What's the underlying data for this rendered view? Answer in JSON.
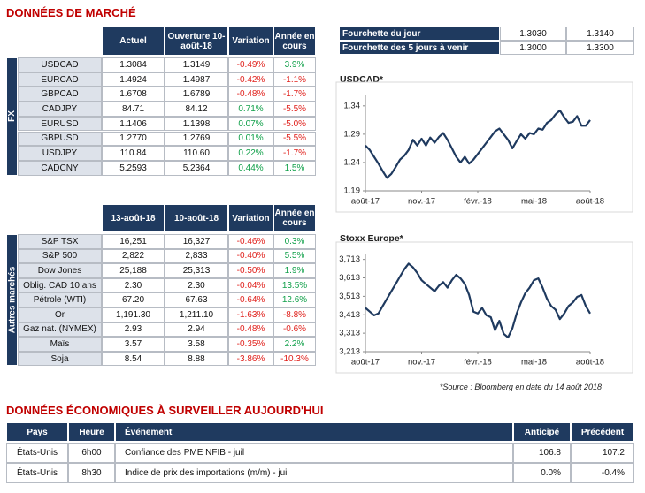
{
  "header": {
    "title": "DONNÉES DE MARCHÉ"
  },
  "fx_table": {
    "side_label": "FX",
    "columns": [
      "Actuel",
      "Ouverture 10-août-18",
      "Variation",
      "Année en cours"
    ],
    "rows": [
      [
        "USDCAD",
        "1.3084",
        "1.3149",
        "-0.49%",
        "3.9%"
      ],
      [
        "EURCAD",
        "1.4924",
        "1.4987",
        "-0.42%",
        "-1.1%"
      ],
      [
        "GBPCAD",
        "1.6708",
        "1.6789",
        "-0.48%",
        "-1.7%"
      ],
      [
        "CADJPY",
        "84.71",
        "84.12",
        "0.71%",
        "-5.5%"
      ],
      [
        "EURUSD",
        "1.1406",
        "1.1398",
        "0.07%",
        "-5.0%"
      ],
      [
        "GBPUSD",
        "1.2770",
        "1.2769",
        "0.01%",
        "-5.5%"
      ],
      [
        "USDJPY",
        "110.84",
        "110.60",
        "0.22%",
        "-1.7%"
      ],
      [
        "CADCNY",
        "5.2593",
        "5.2364",
        "0.44%",
        "1.5%"
      ]
    ]
  },
  "markets_table": {
    "side_label": "Autres marchés",
    "columns": [
      "13-août-18",
      "10-août-18",
      "Variation",
      "Année en cours"
    ],
    "rows": [
      [
        "S&P TSX",
        "16,251",
        "16,327",
        "-0.46%",
        "0.3%"
      ],
      [
        "S&P 500",
        "2,822",
        "2,833",
        "-0.40%",
        "5.5%"
      ],
      [
        "Dow Jones",
        "25,188",
        "25,313",
        "-0.50%",
        "1.9%"
      ],
      [
        "Oblig. CAD 10 ans",
        "2.30",
        "2.30",
        "-0.04%",
        "13.5%"
      ],
      [
        "Pétrole (WTI)",
        "67.20",
        "67.63",
        "-0.64%",
        "12.6%"
      ],
      [
        "Or",
        "1,191.30",
        "1,211.10",
        "-1.63%",
        "-8.8%"
      ],
      [
        "Gaz nat. (NYMEX)",
        "2.93",
        "2.94",
        "-0.48%",
        "-0.6%"
      ],
      [
        "Maïs",
        "3.57",
        "3.58",
        "-0.35%",
        "2.2%"
      ],
      [
        "Soja",
        "8.54",
        "8.88",
        "-3.86%",
        "-10.3%"
      ]
    ]
  },
  "range_table": {
    "rows": [
      [
        "Fourchette du jour",
        "1.3030",
        "1.3140"
      ],
      [
        "Fourchette des 5 jours à venir",
        "1.3000",
        "1.3300"
      ]
    ]
  },
  "chart_data": [
    {
      "type": "line",
      "title": "USDCAD*",
      "color": "#1f3a5f",
      "categories": [
        "août-17",
        null,
        null,
        null,
        null,
        null,
        null,
        null,
        null,
        null,
        null,
        null,
        null,
        "nov.-17",
        null,
        null,
        null,
        null,
        null,
        null,
        null,
        null,
        null,
        null,
        null,
        null,
        "févr.-18",
        null,
        null,
        null,
        null,
        null,
        null,
        null,
        null,
        null,
        null,
        null,
        null,
        "mai-18",
        null,
        null,
        null,
        null,
        null,
        null,
        null,
        null,
        null,
        null,
        null,
        null,
        "août-18"
      ],
      "values": [
        1.27,
        1.262,
        1.25,
        1.238,
        1.225,
        1.213,
        1.22,
        1.232,
        1.245,
        1.252,
        1.262,
        1.28,
        1.27,
        1.282,
        1.27,
        1.284,
        1.275,
        1.285,
        1.292,
        1.28,
        1.265,
        1.25,
        1.24,
        1.25,
        1.238,
        1.245,
        1.255,
        1.265,
        1.275,
        1.285,
        1.295,
        1.3,
        1.29,
        1.28,
        1.265,
        1.278,
        1.29,
        1.282,
        1.292,
        1.29,
        1.3,
        1.298,
        1.31,
        1.315,
        1.325,
        1.332,
        1.32,
        1.31,
        1.312,
        1.322,
        1.305,
        1.305,
        1.315
      ],
      "ylim": [
        1.19,
        1.36
      ],
      "yticks": [
        1.19,
        1.24,
        1.29,
        1.34
      ]
    },
    {
      "type": "line",
      "title": "Stoxx Europe*",
      "color": "#1f3a5f",
      "categories": [
        "août-17",
        null,
        null,
        null,
        null,
        null,
        null,
        null,
        null,
        null,
        null,
        null,
        null,
        "nov.-17",
        null,
        null,
        null,
        null,
        null,
        null,
        null,
        null,
        null,
        null,
        null,
        null,
        "févr.-18",
        null,
        null,
        null,
        null,
        null,
        null,
        null,
        null,
        null,
        null,
        null,
        null,
        "mai-18",
        null,
        null,
        null,
        null,
        null,
        null,
        null,
        null,
        null,
        null,
        null,
        null,
        "août-18"
      ],
      "values": [
        3450,
        3430,
        3410,
        3420,
        3460,
        3500,
        3540,
        3580,
        3620,
        3660,
        3690,
        3670,
        3640,
        3600,
        3580,
        3560,
        3540,
        3570,
        3590,
        3560,
        3600,
        3630,
        3610,
        3580,
        3520,
        3430,
        3420,
        3450,
        3410,
        3400,
        3330,
        3380,
        3310,
        3290,
        3340,
        3420,
        3480,
        3530,
        3560,
        3600,
        3610,
        3560,
        3500,
        3460,
        3440,
        3390,
        3420,
        3460,
        3480,
        3510,
        3520,
        3460,
        3420
      ],
      "ylim": [
        3213,
        3740
      ],
      "yticks": [
        {
          "value": 3213,
          "label": "3,213"
        },
        {
          "value": 3313,
          "label": "3,313"
        },
        {
          "value": 3413,
          "label": "3,413"
        },
        {
          "value": 3513,
          "label": "3,513"
        },
        {
          "value": 3613,
          "label": "3,613"
        },
        {
          "value": 3713,
          "label": "3,713"
        }
      ]
    }
  ],
  "source_note": "*Source : Bloomberg en date du  14 août 2018",
  "economic_section": {
    "title": "DONNÉES ÉCONOMIQUES À SURVEILLER AUJOURD'HUI",
    "columns": [
      "Pays",
      "Heure",
      "Événement",
      "Anticipé",
      "Précédent"
    ],
    "rows": [
      [
        "États-Unis",
        "6h00",
        "Confiance des PME NFIB - juil",
        "106.8",
        "107.2"
      ],
      [
        "États-Unis",
        "8h30",
        "Indice de prix des importations (m/m) - juil",
        "0.0%",
        "-0.4%"
      ]
    ]
  }
}
